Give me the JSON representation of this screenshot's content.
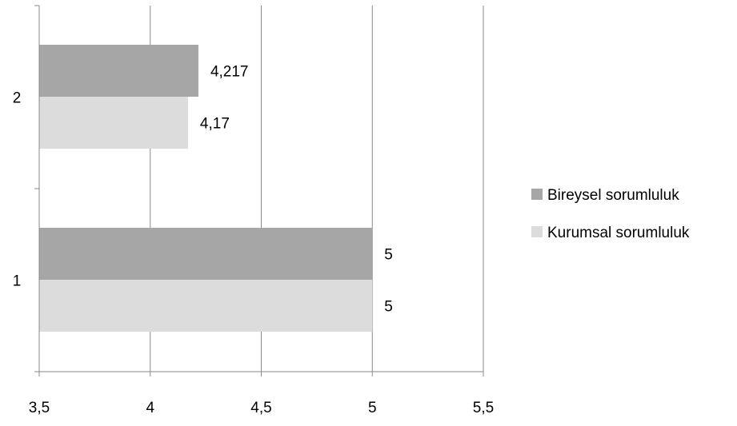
{
  "chart_data": {
    "type": "bar",
    "orientation": "horizontal",
    "categories": [
      "1",
      "2"
    ],
    "series": [
      {
        "name": "Bireysel sorumluluk",
        "values": [
          5,
          4.217
        ],
        "labels": [
          "5",
          "4,217"
        ],
        "color": "#a6a6a6"
      },
      {
        "name": "Kurumsal sorumluluk",
        "values": [
          5,
          4.17
        ],
        "labels": [
          "5",
          "4,17"
        ],
        "color": "#dcdcdc"
      }
    ],
    "xlim": [
      3.5,
      5.5
    ],
    "xticks": [
      3.5,
      4,
      4.5,
      5,
      5.5
    ],
    "xtick_labels": [
      "3,5",
      "4",
      "4,5",
      "5",
      "5,5"
    ],
    "grid": "vertical",
    "legend_position": "right"
  }
}
